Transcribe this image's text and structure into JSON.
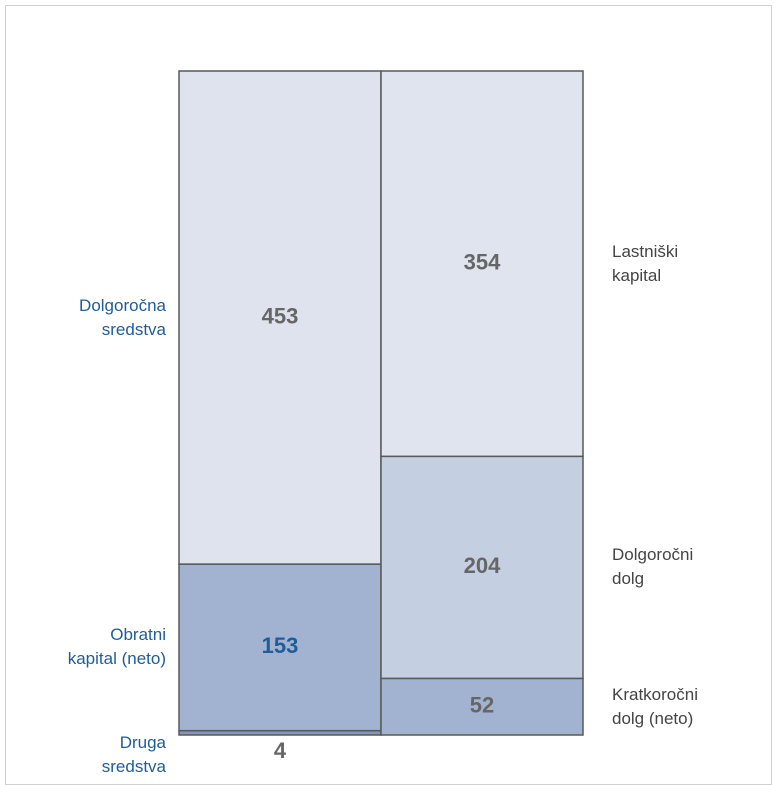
{
  "chart_data": {
    "type": "stacked-bar",
    "stacks": [
      {
        "name_side": "left",
        "name_color": "#1f5c99",
        "segments": [
          {
            "name": "Druga\nsredstva",
            "value": 4,
            "color": "#8497b9",
            "label_color": "#666666"
          },
          {
            "name": "Obratni\nkapital (neto)",
            "value": 153,
            "color": "#a2b3d1",
            "label_color": "#1f5c99"
          },
          {
            "name": "Dolgoročna\nsredstva",
            "value": 453,
            "color": "#dee3ee",
            "label_color": "#666666"
          }
        ]
      },
      {
        "name_side": "right",
        "name_color": "#444444",
        "segments": [
          {
            "name": "Kratkoročni\ndolg (neto)",
            "value": 52,
            "color": "#a2b3d1",
            "label_color": "#666666"
          },
          {
            "name": "Dolgoročni\ndolg",
            "value": 204,
            "color": "#c5cfe2",
            "label_color": "#666666"
          },
          {
            "name": "Lastniški\nkapital",
            "value": 354,
            "color": "#dfe4ef",
            "label_color": "#666666"
          }
        ]
      }
    ]
  }
}
